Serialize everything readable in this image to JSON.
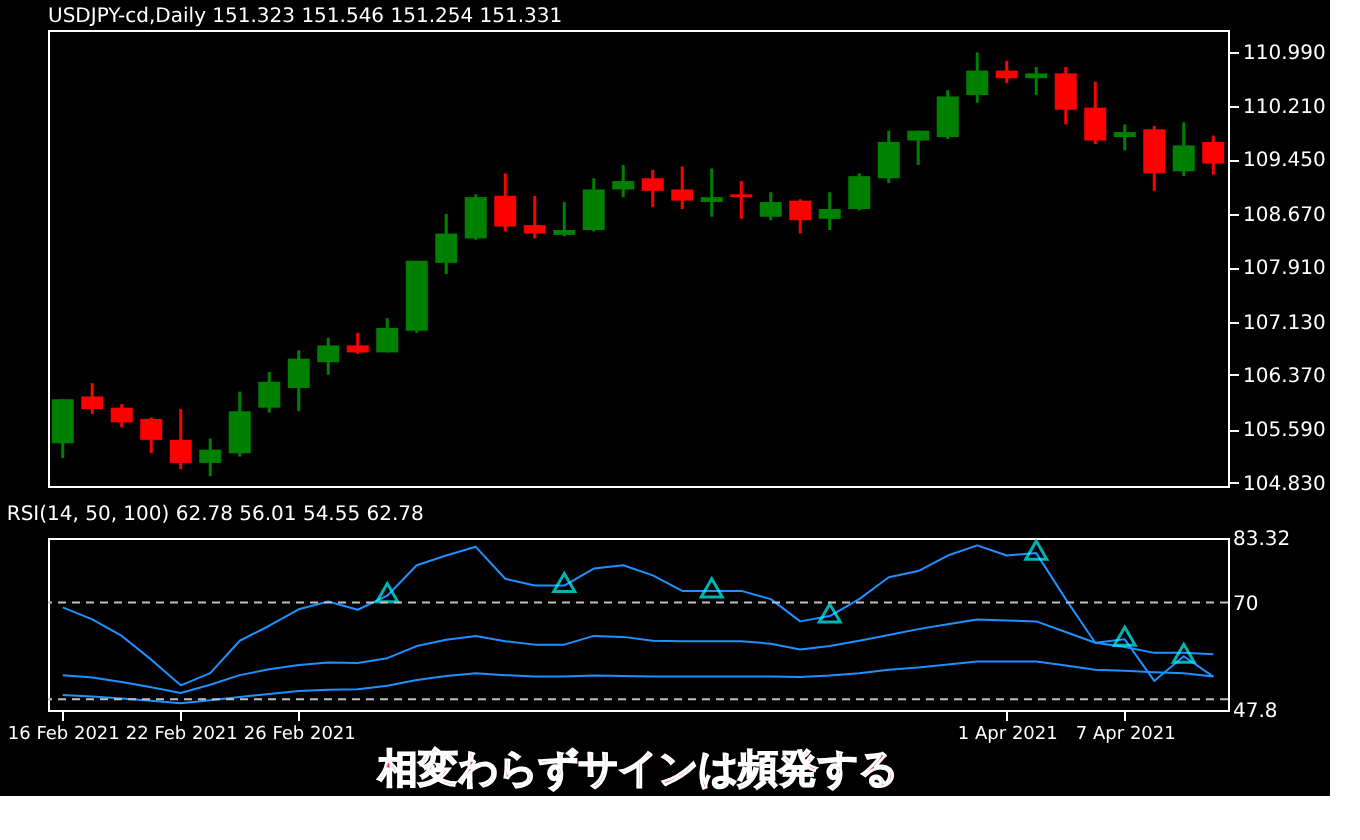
{
  "chart_data": [
    {
      "type": "candlestick",
      "title": "USDJPY-cd,Daily  151.323 151.546 151.254 151.331",
      "tick_labels": "y",
      "grid": false,
      "categories": [
        null,
        null,
        null,
        null,
        null,
        null,
        null,
        null,
        null,
        null,
        null,
        null,
        null,
        null,
        null,
        null,
        null,
        null,
        null,
        null,
        null,
        null,
        null,
        null,
        null,
        null,
        null,
        null,
        null,
        null,
        null,
        null,
        null,
        null,
        null,
        null,
        null,
        null,
        null,
        null
      ],
      "ohlc": [
        [
          105.39,
          106.02,
          105.18,
          106.02
        ],
        [
          106.06,
          106.25,
          105.81,
          105.88
        ],
        [
          105.9,
          105.95,
          105.62,
          105.69
        ],
        [
          105.74,
          105.76,
          105.25,
          105.44
        ],
        [
          105.44,
          105.88,
          105.02,
          105.11
        ],
        [
          105.11,
          105.46,
          104.92,
          105.3
        ],
        [
          105.25,
          106.13,
          105.2,
          105.85
        ],
        [
          105.9,
          106.41,
          105.83,
          106.27
        ],
        [
          106.18,
          106.72,
          105.85,
          106.6
        ],
        [
          106.55,
          106.9,
          106.37,
          106.79
        ],
        [
          106.79,
          106.97,
          106.67,
          106.69
        ],
        [
          106.69,
          107.18,
          106.69,
          107.04
        ],
        [
          107.0,
          108.0,
          106.97,
          108.0
        ],
        [
          107.97,
          108.67,
          107.81,
          108.39
        ],
        [
          108.32,
          108.95,
          108.3,
          108.91
        ],
        [
          108.93,
          109.25,
          108.42,
          108.49
        ],
        [
          108.51,
          108.93,
          108.32,
          108.39
        ],
        [
          108.37,
          108.84,
          108.35,
          108.44
        ],
        [
          108.44,
          109.18,
          108.42,
          109.02
        ],
        [
          109.02,
          109.37,
          108.91,
          109.14
        ],
        [
          109.18,
          109.3,
          108.77,
          109.0
        ],
        [
          109.02,
          109.35,
          108.74,
          108.86
        ],
        [
          108.84,
          109.32,
          108.63,
          108.91
        ],
        [
          108.95,
          109.14,
          108.6,
          108.91
        ],
        [
          108.63,
          108.98,
          108.58,
          108.84
        ],
        [
          108.86,
          108.88,
          108.39,
          108.58
        ],
        [
          108.6,
          108.98,
          108.44,
          108.74
        ],
        [
          108.74,
          109.25,
          108.72,
          109.21
        ],
        [
          109.18,
          109.86,
          109.11,
          109.7
        ],
        [
          109.72,
          109.86,
          109.37,
          109.86
        ],
        [
          109.77,
          110.44,
          109.74,
          110.35
        ],
        [
          110.37,
          110.98,
          110.26,
          110.72
        ],
        [
          110.72,
          110.86,
          110.54,
          110.61
        ],
        [
          110.61,
          110.77,
          110.37,
          110.68
        ],
        [
          110.68,
          110.77,
          109.95,
          110.16
        ],
        [
          110.19,
          110.56,
          109.67,
          109.72
        ],
        [
          109.77,
          109.95,
          109.58,
          109.84
        ],
        [
          109.88,
          109.93,
          109.0,
          109.25
        ],
        [
          109.28,
          109.98,
          109.21,
          109.65
        ],
        [
          109.7,
          109.79,
          109.23,
          109.39
        ]
      ],
      "colors": [
        "#008000",
        "#ff0000",
        "#ff0000",
        "#ff0000",
        "#ff0000",
        "#008000",
        "#008000",
        "#008000",
        "#008000",
        "#008000",
        "#ff0000",
        "#008000",
        "#008000",
        "#008000",
        "#008000",
        "#ff0000",
        "#ff0000",
        "#008000",
        "#008000",
        "#008000",
        "#ff0000",
        "#ff0000",
        "#008000",
        "#ff0000",
        "#008000",
        "#ff0000",
        "#008000",
        "#008000",
        "#008000",
        "#008000",
        "#008000",
        "#008000",
        "#ff0000",
        "#008000",
        "#ff0000",
        "#ff0000",
        "#008000",
        "#ff0000",
        "#008000",
        "#ff0000"
      ],
      "ylim": [
        104.78,
        111.3
      ],
      "yticks": [
        {
          "value": 104.83,
          "label": "104.830"
        },
        {
          "value": 105.59,
          "label": "105.590"
        },
        {
          "value": 106.37,
          "label": "106.370"
        },
        {
          "value": 107.13,
          "label": "107.130"
        },
        {
          "value": 107.91,
          "label": "107.910"
        },
        {
          "value": 108.67,
          "label": "108.670"
        },
        {
          "value": 109.45,
          "label": "109.450"
        },
        {
          "value": 110.21,
          "label": "110.210"
        },
        {
          "value": 110.99,
          "label": "110.990"
        }
      ]
    },
    {
      "type": "line",
      "title": "RSI(14, 50, 100) 62.78 56.01 54.55 62.78",
      "grid": false,
      "line_style": "solid",
      "categories": [
        "16 Feb 2021",
        null,
        null,
        null,
        "22 Feb 2021",
        null,
        null,
        null,
        "26 Feb 2021",
        null,
        null,
        null,
        null,
        null,
        null,
        null,
        null,
        null,
        null,
        null,
        null,
        null,
        null,
        null,
        null,
        null,
        null,
        null,
        null,
        null,
        null,
        null,
        "1 Apr 2021",
        null,
        null,
        null,
        "7 Apr 2021",
        null,
        null,
        null
      ],
      "series": [
        {
          "type": "line",
          "color": "#1e90ff",
          "values": [
            69.0,
            66.5,
            63.1,
            58.2,
            52.9,
            55.4,
            62.1,
            65.2,
            68.6,
            70.2,
            68.5,
            71.4,
            77.7,
            79.7,
            81.5,
            74.9,
            73.5,
            73.5,
            77.0,
            77.7,
            75.6,
            72.4,
            72.4,
            72.4,
            70.7,
            66.1,
            67.2,
            70.7,
            75.2,
            76.5,
            79.7,
            81.8,
            79.7,
            80.2,
            70.7,
            61.7,
            62.4,
            53.8,
            58.9,
            54.7
          ]
        },
        {
          "type": "line",
          "color": "#1e90ff",
          "values": [
            55.0,
            54.5,
            53.6,
            52.5,
            51.3,
            53.0,
            55.0,
            56.2,
            57.1,
            57.6,
            57.5,
            58.5,
            61.0,
            62.3,
            63.1,
            62.0,
            61.3,
            61.3,
            63.1,
            62.9,
            62.1,
            62.0,
            62.0,
            62.0,
            61.5,
            60.3,
            61.0,
            62.1,
            63.3,
            64.5,
            65.5,
            66.5,
            66.3,
            66.1,
            63.9,
            61.7,
            60.8,
            59.6,
            59.6,
            59.3
          ]
        },
        {
          "type": "line",
          "color": "#1e90ff",
          "values": [
            50.9,
            50.6,
            50.2,
            49.7,
            49.2,
            49.8,
            50.5,
            51.1,
            51.7,
            52.0,
            52.1,
            52.8,
            54.0,
            54.8,
            55.4,
            55.0,
            54.7,
            54.7,
            54.9,
            54.8,
            54.7,
            54.7,
            54.7,
            54.7,
            54.7,
            54.6,
            54.9,
            55.4,
            56.1,
            56.6,
            57.2,
            57.8,
            57.8,
            57.8,
            57.0,
            56.1,
            55.9,
            55.6,
            55.4,
            54.7
          ]
        },
        {
          "type": "scatter",
          "marker": "triangle",
          "color": "#00ffff",
          "values": [
            null,
            null,
            null,
            null,
            null,
            null,
            null,
            null,
            null,
            null,
            null,
            71.4,
            null,
            null,
            null,
            null,
            null,
            73.5,
            null,
            null,
            null,
            null,
            72.4,
            null,
            null,
            null,
            67.2,
            null,
            null,
            null,
            null,
            null,
            null,
            80.2,
            null,
            null,
            62.4,
            null,
            58.9,
            null
          ]
        }
      ],
      "ylim": [
        47.8,
        83.32
      ],
      "yticks": [
        47.8,
        70,
        83.32
      ],
      "ref_lines": [
        {
          "axis": "y",
          "value": 70,
          "color": "#c0c0c0",
          "line_style": "dashed"
        },
        {
          "axis": "y",
          "value": 50,
          "color": "#c0c0c0",
          "line_style": "dashed"
        }
      ],
      "annotations": [
        "相変わらずサインは頻発する"
      ]
    }
  ]
}
